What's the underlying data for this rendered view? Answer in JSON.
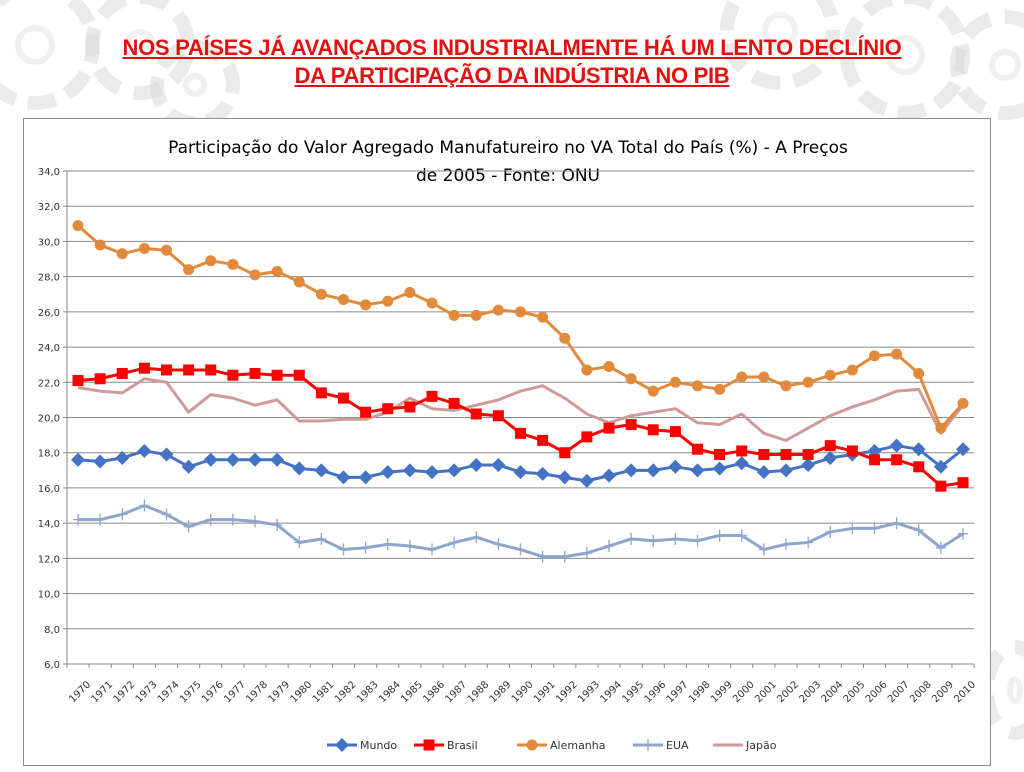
{
  "slide": {
    "title_line1": "NOS PAÍSES JÁ AVANÇADOS INDUSTRIALMENTE HÁ UM LENTO DECLÍNIO",
    "title_line2": "DA PARTICIPAÇÃO DA INDÚSTRIA NO PIB",
    "title_color": "#e41010",
    "background_icon": "gear-icon"
  },
  "chart_data": {
    "type": "line",
    "title_line1": "Participação do Valor Agregado Manufatureiro no VA Total do País (%) - A Preços",
    "title_line2": "de 2005 - Fonte: ONU",
    "xlabel": "",
    "ylabel": "",
    "ylim": [
      6,
      34
    ],
    "y_ticks": [
      "6,0",
      "8,0",
      "10,0",
      "12,0",
      "14,0",
      "16,0",
      "18,0",
      "20,0",
      "22,0",
      "24,0",
      "26,0",
      "28,0",
      "30,0",
      "32,0",
      "34,0"
    ],
    "grid": true,
    "legend_position": "bottom",
    "x": [
      "1970",
      "1971",
      "1972",
      "1973",
      "1974",
      "1975",
      "1976",
      "1977",
      "1978",
      "1979",
      "1980",
      "1981",
      "1982",
      "1983",
      "1984",
      "1985",
      "1986",
      "1987",
      "1988",
      "1989",
      "1990",
      "1991",
      "1992",
      "1993",
      "1994",
      "1995",
      "1996",
      "1997",
      "1998",
      "1999",
      "2000",
      "2001",
      "2002",
      "2003",
      "2004",
      "2005",
      "2006",
      "2007",
      "2008",
      "2009",
      "2010"
    ],
    "series": [
      {
        "name": "Mundo",
        "color": "#4472c4",
        "marker": "diamond",
        "values": [
          17.6,
          17.5,
          17.7,
          18.1,
          17.9,
          17.2,
          17.6,
          17.6,
          17.6,
          17.6,
          17.1,
          17.0,
          16.6,
          16.6,
          16.9,
          17.0,
          16.9,
          17.0,
          17.3,
          17.3,
          16.9,
          16.8,
          16.6,
          16.4,
          16.7,
          17.0,
          17.0,
          17.2,
          17.0,
          17.1,
          17.4,
          16.9,
          17.0,
          17.3,
          17.7,
          17.9,
          18.1,
          18.4,
          18.2,
          17.2,
          18.2
        ]
      },
      {
        "name": "Brasil",
        "color": "#ff0000",
        "marker": "square",
        "values": [
          22.1,
          22.2,
          22.5,
          22.8,
          22.7,
          22.7,
          22.7,
          22.4,
          22.5,
          22.4,
          22.4,
          21.4,
          21.1,
          20.3,
          20.5,
          20.6,
          21.2,
          20.8,
          20.2,
          20.1,
          19.1,
          18.7,
          18.0,
          18.9,
          19.4,
          19.6,
          19.3,
          19.2,
          18.2,
          17.9,
          18.1,
          17.9,
          17.9,
          17.9,
          18.4,
          18.1,
          17.6,
          17.6,
          17.2,
          16.1,
          16.3
        ]
      },
      {
        "name": "Alemanha",
        "color": "#e28a3b",
        "marker": "circle",
        "values": [
          30.9,
          29.8,
          29.3,
          29.6,
          29.5,
          28.4,
          28.9,
          28.7,
          28.1,
          28.3,
          27.7,
          27.0,
          26.7,
          26.4,
          26.6,
          27.1,
          26.5,
          25.8,
          25.8,
          26.1,
          26.0,
          25.7,
          24.5,
          22.7,
          22.9,
          22.2,
          21.5,
          22.0,
          21.8,
          21.6,
          22.3,
          22.3,
          21.8,
          22.0,
          22.4,
          22.7,
          23.5,
          23.6,
          22.5,
          19.4,
          20.8
        ]
      },
      {
        "name": "EUA",
        "color": "#8ea5cc",
        "marker": "plus",
        "values": [
          14.2,
          14.2,
          14.5,
          15.0,
          14.5,
          13.8,
          14.2,
          14.2,
          14.1,
          13.9,
          12.9,
          13.1,
          12.5,
          12.6,
          12.8,
          12.7,
          12.5,
          12.9,
          13.2,
          12.8,
          12.5,
          12.1,
          12.1,
          12.3,
          12.7,
          13.1,
          13.0,
          13.1,
          13.0,
          13.3,
          13.3,
          12.5,
          12.8,
          12.9,
          13.5,
          13.7,
          13.7,
          14.0,
          13.6,
          12.6,
          13.4
        ]
      },
      {
        "name": "Japão",
        "color": "#d19a9a",
        "marker": "none",
        "values": [
          21.7,
          21.5,
          21.4,
          22.2,
          22.0,
          20.3,
          21.3,
          21.1,
          20.7,
          21.0,
          19.8,
          19.8,
          19.9,
          19.9,
          20.3,
          21.1,
          20.5,
          20.4,
          20.7,
          21.0,
          21.5,
          21.8,
          21.1,
          20.2,
          19.7,
          20.1,
          20.3,
          20.5,
          19.7,
          19.6,
          20.2,
          19.1,
          18.7,
          19.4,
          20.1,
          20.6,
          21.0,
          21.5,
          21.6,
          19.1,
          20.7
        ]
      }
    ]
  }
}
